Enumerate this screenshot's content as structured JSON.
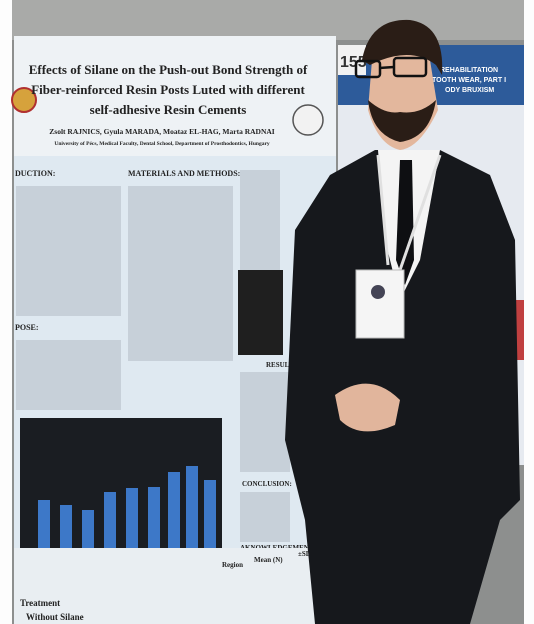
{
  "poster": {
    "title": [
      "Effects of Silane on the Push-out Bond Strength of",
      "Fiber-reinforced Resin Posts Luted with different",
      "self-adhesive Resin Cements"
    ],
    "authors": "Zsolt RAJNICS, Gyula MARADA, Moataz EL-HAG, Marta RADNAI",
    "affiliation": "University of Pécs, Medical Faculty, Dental School, Department of Prosthodontics, Hungary",
    "sections": [
      "DUCTION:",
      "MATERIALS AND METHODS:",
      "POSE:",
      "RESULTS:",
      "CONCLUSION:",
      "AKNOWLEDGEMENT:"
    ],
    "table": {
      "headers": [
        "Region",
        "Mean (N)",
        "±SD"
      ],
      "row_label": "Treatment",
      "group": "Without Silane"
    }
  },
  "neighbor_poster": {
    "number": "155",
    "lines": [
      "REHABILITATION",
      "TOOTH WEAR, PART I",
      "ODY BRUXISM"
    ]
  }
}
